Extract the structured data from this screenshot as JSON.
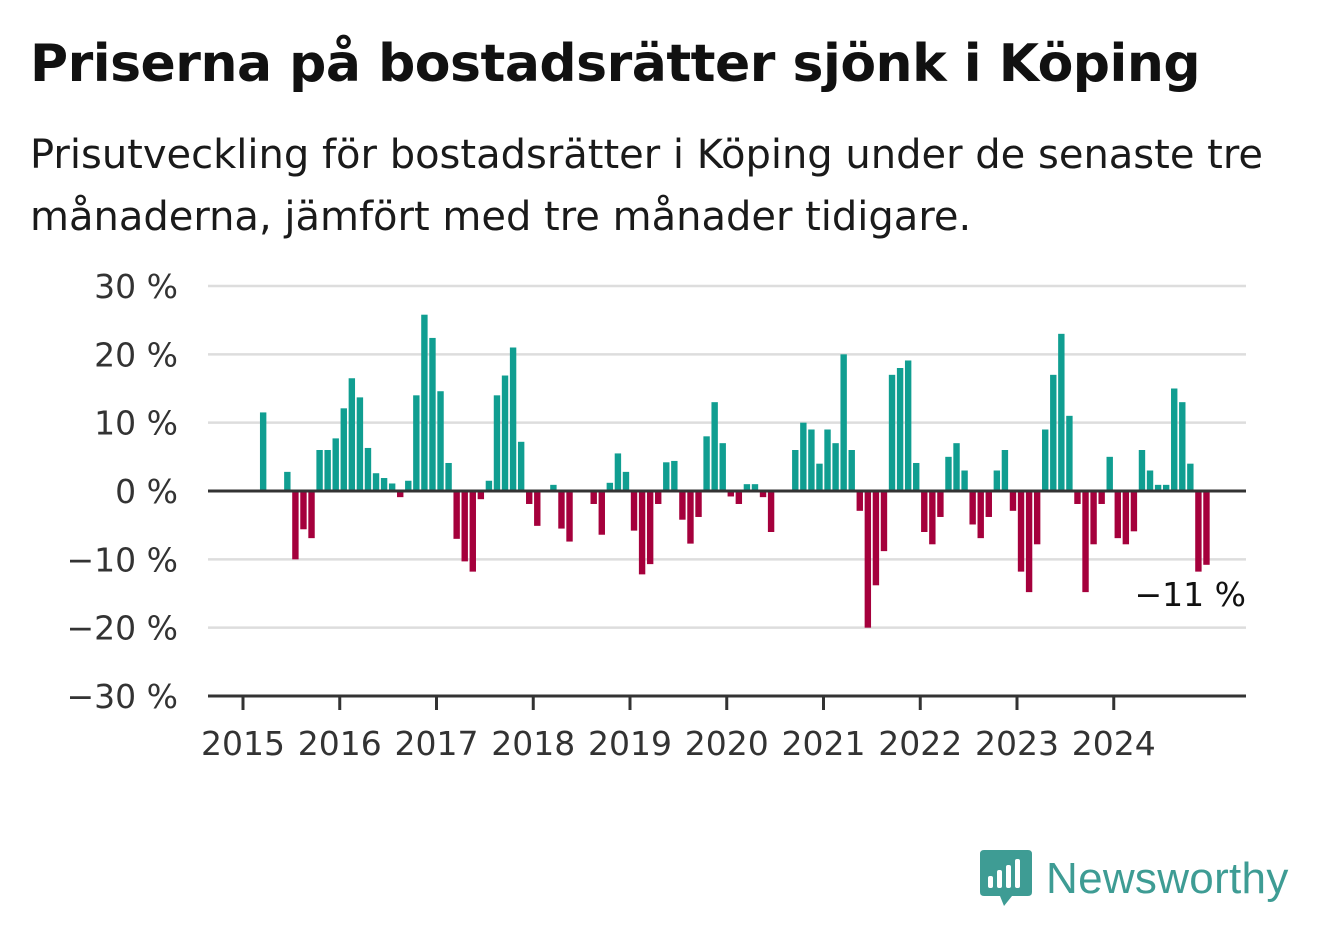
{
  "title": "Priserna på bostadsrätter sjönk i Köping",
  "subtitle": "Prisutveckling för bostadsrätter i Köping under de senaste tre månaderna, jämfört med tre månader tidigare.",
  "brand": {
    "name": "Newsworthy",
    "color": "#3e9c94"
  },
  "colors": {
    "positive": "#109e91",
    "negative": "#a5003c",
    "grid": "#dddddd",
    "axis": "#333333"
  },
  "chart_data": {
    "type": "bar",
    "title": "Priserna på bostadsrätter sjönk i Köping",
    "subtitle": "Prisutveckling för bostadsrätter i Köping under de senaste tre månaderna, jämfört med tre månader tidigare.",
    "xlabel": "",
    "ylabel": "",
    "ylim": [
      -30,
      30
    ],
    "yticks": [
      30,
      20,
      10,
      0,
      -10,
      -20,
      -30
    ],
    "ytick_labels": [
      "30 %",
      "20 %",
      "10 %",
      "0 %",
      "−10 %",
      "−20 %",
      "−30 %"
    ],
    "xtick_labels": [
      "2015",
      "2016",
      "2017",
      "2018",
      "2019",
      "2020",
      "2021",
      "2022",
      "2023",
      "2024"
    ],
    "grid": true,
    "start": "2015-01",
    "values": [
      0,
      0,
      11.5,
      0,
      0,
      2.8,
      -10,
      -5.6,
      -6.9,
      6,
      6,
      7.7,
      12.1,
      16.5,
      13.7,
      6.3,
      2.6,
      1.9,
      1.1,
      -0.9,
      1.5,
      14,
      25.8,
      22.4,
      14.6,
      4.1,
      -7,
      -10.3,
      -11.8,
      -1.2,
      1.5,
      14,
      16.9,
      21,
      7.2,
      -1.9,
      -5.1,
      0,
      0.9,
      -5.5,
      -7.4,
      0,
      0,
      -1.9,
      -6.4,
      1.2,
      5.5,
      2.8,
      -5.8,
      -12.2,
      -10.7,
      -1.9,
      4.2,
      4.4,
      -4.2,
      -7.7,
      -3.8,
      8,
      13,
      7,
      -0.8,
      -1.9,
      1,
      1,
      -0.9,
      -6,
      0,
      0,
      6,
      10,
      9,
      4,
      9,
      7,
      20,
      6,
      -2.9,
      -20,
      -13.8,
      -8.8,
      17,
      18,
      19.1,
      4.1,
      -6,
      -7.8,
      -3.8,
      5,
      7,
      3,
      -4.9,
      -6.9,
      -3.8,
      3,
      6,
      -2.9,
      -11.8,
      -14.8,
      -7.8,
      9,
      17,
      23,
      11,
      -1.9,
      -14.8,
      -7.8,
      -1.9,
      5,
      -6.9,
      -7.8,
      -5.9,
      6,
      3,
      0.9,
      0.9,
      15,
      13,
      4,
      -11.8,
      -10.8
    ],
    "annotations": [
      {
        "text": "−11 %",
        "month": "2024-12",
        "value": -10.8
      }
    ]
  }
}
